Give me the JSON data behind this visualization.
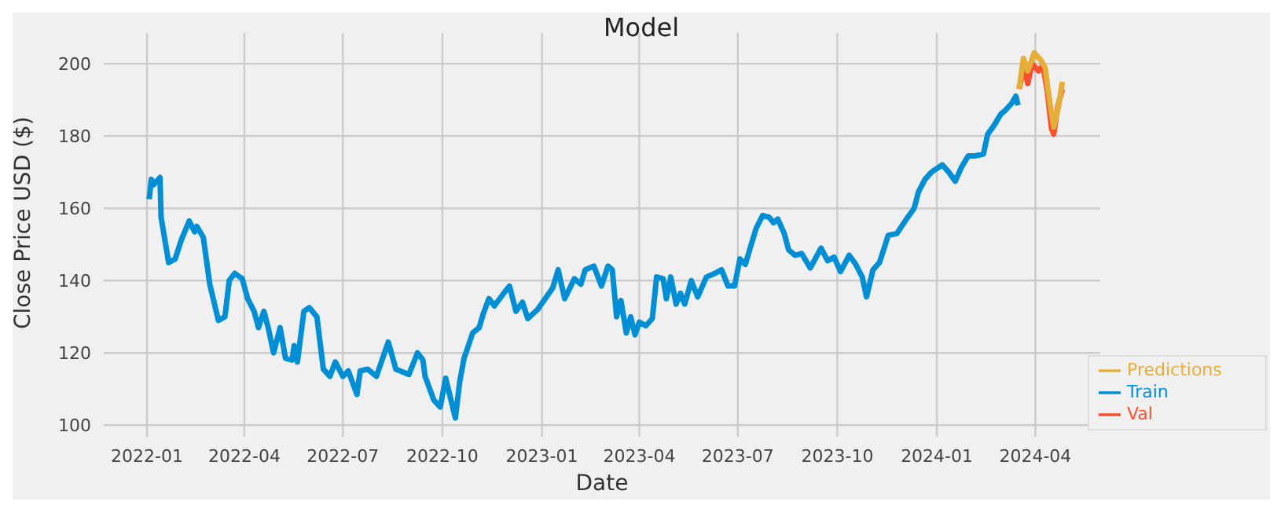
{
  "chart_data": {
    "type": "line",
    "title": "Model",
    "xlabel": "Date",
    "ylabel": "Close Price USD ($)",
    "xlim": [
      "2021-11-22",
      "2024-05-31"
    ],
    "xticks": [
      "2022-01",
      "2022-04",
      "2022-07",
      "2022-10",
      "2023-01",
      "2023-04",
      "2023-07",
      "2023-10",
      "2024-01",
      "2024-04"
    ],
    "ylim": [
      96.8,
      208.5
    ],
    "yticks": [
      100,
      120,
      140,
      160,
      180,
      200
    ],
    "grid": true,
    "legend": "bottom right",
    "marker": "none",
    "line_style": "solid",
    "series": [
      {
        "name": "Train",
        "color": "#008fd5",
        "x": [
          "2022-01-03",
          "2022-01-05",
          "2022-01-07",
          "2022-01-13",
          "2022-01-14",
          "2022-01-21",
          "2022-01-27",
          "2022-02-02",
          "2022-02-09",
          "2022-02-14",
          "2022-02-16",
          "2022-02-22",
          "2022-02-28",
          "2022-03-08",
          "2022-03-14",
          "2022-03-18",
          "2022-03-23",
          "2022-03-30",
          "2022-04-04",
          "2022-04-10",
          "2022-04-14",
          "2022-04-19",
          "2022-04-23",
          "2022-04-28",
          "2022-05-04",
          "2022-05-09",
          "2022-05-15",
          "2022-05-17",
          "2022-05-20",
          "2022-05-26",
          "2022-05-31",
          "2022-06-07",
          "2022-06-13",
          "2022-06-19",
          "2022-06-24",
          "2022-07-01",
          "2022-07-06",
          "2022-07-14",
          "2022-07-17",
          "2022-07-24",
          "2022-08-01",
          "2022-08-12",
          "2022-08-19",
          "2022-08-31",
          "2022-09-08",
          "2022-09-13",
          "2022-09-15",
          "2022-09-23",
          "2022-09-29",
          "2022-10-04",
          "2022-10-13",
          "2022-10-17",
          "2022-10-21",
          "2022-10-25",
          "2022-10-29",
          "2022-11-04",
          "2022-11-08",
          "2022-11-13",
          "2022-11-18",
          "2022-11-28",
          "2022-12-02",
          "2022-12-08",
          "2022-12-14",
          "2022-12-19",
          "2022-12-28",
          "2023-01-04",
          "2023-01-11",
          "2023-01-16",
          "2023-01-22",
          "2023-01-31",
          "2023-02-06",
          "2023-02-10",
          "2023-02-18",
          "2023-02-25",
          "2023-03-03",
          "2023-03-07",
          "2023-03-11",
          "2023-03-15",
          "2023-03-20",
          "2023-03-24",
          "2023-03-28",
          "2023-04-01",
          "2023-04-07",
          "2023-04-13",
          "2023-04-17",
          "2023-04-23",
          "2023-04-26",
          "2023-04-30",
          "2023-05-05",
          "2023-05-09",
          "2023-05-13",
          "2023-05-19",
          "2023-05-25",
          "2023-06-02",
          "2023-06-10",
          "2023-06-16",
          "2023-06-22",
          "2023-06-28",
          "2023-07-03",
          "2023-07-08",
          "2023-07-12",
          "2023-07-18",
          "2023-07-24",
          "2023-07-30",
          "2023-08-03",
          "2023-08-07",
          "2023-08-13",
          "2023-08-17",
          "2023-08-23",
          "2023-08-29",
          "2023-09-06",
          "2023-09-16",
          "2023-09-22",
          "2023-09-28",
          "2023-10-04",
          "2023-10-12",
          "2023-10-18",
          "2023-10-24",
          "2023-10-28",
          "2023-11-03",
          "2023-11-09",
          "2023-11-17",
          "2023-11-25",
          "2023-12-05",
          "2023-12-11",
          "2023-12-15",
          "2023-12-21",
          "2023-12-27",
          "2024-01-06",
          "2024-01-12",
          "2024-01-18",
          "2024-01-24",
          "2024-01-30",
          "2024-02-05",
          "2024-02-13",
          "2024-02-17",
          "2024-02-23",
          "2024-02-29",
          "2024-03-04",
          "2024-03-10",
          "2024-03-14",
          "2024-03-16"
        ],
        "values": [
          162.5,
          168,
          166.5,
          168.5,
          157.5,
          145,
          146,
          151.5,
          156.5,
          153.5,
          155,
          152,
          139,
          129,
          130,
          140,
          142,
          140.5,
          135,
          131.5,
          127,
          131.5,
          127,
          120,
          127,
          118.5,
          118,
          122,
          117.5,
          131.5,
          132.5,
          130,
          115.5,
          113.5,
          117.5,
          113.5,
          115,
          108.5,
          115,
          115.5,
          113.5,
          123,
          115.5,
          114,
          120,
          118,
          113.5,
          107,
          105,
          113,
          102,
          112,
          118.5,
          122,
          125.5,
          127,
          131,
          135,
          133,
          137,
          138.5,
          131.5,
          134,
          129.5,
          132,
          135,
          138,
          143,
          135,
          140.5,
          139,
          143,
          144,
          138.5,
          144,
          143,
          130,
          134.5,
          125.5,
          130,
          125,
          128.5,
          127.5,
          129.5,
          141,
          140.5,
          135,
          141,
          133.5,
          136.5,
          133.5,
          140,
          135.5,
          141,
          142,
          143,
          138.5,
          138.5,
          146,
          144.5,
          148.5,
          154.5,
          158,
          157.5,
          156,
          157,
          153,
          148.5,
          147,
          147.5,
          143.5,
          149,
          145.5,
          146.5,
          142.5,
          147,
          144.5,
          141,
          135.5,
          143,
          145,
          152.5,
          153,
          157.5,
          160,
          164.5,
          168,
          170,
          172,
          170,
          167.5,
          171.5,
          174.5,
          174.5,
          175,
          180.5,
          183,
          186,
          187,
          189,
          191,
          188.5
        ]
      },
      {
        "name": "Val",
        "color": "#fc4f30",
        "x": [
          "2024-03-17",
          "2024-03-22",
          "2024-03-25",
          "2024-03-29",
          "2024-04-04",
          "2024-04-08",
          "2024-04-12",
          "2024-04-16",
          "2024-04-18",
          "2024-04-22",
          "2024-04-26"
        ],
        "values": [
          193,
          199.5,
          194.5,
          200,
          198,
          199.5,
          192.5,
          182,
          180.5,
          188.5,
          193
        ]
      },
      {
        "name": "Predictions",
        "color": "#e5ae38",
        "x": [
          "2024-03-17",
          "2024-03-21",
          "2024-03-25",
          "2024-03-31",
          "2024-04-06",
          "2024-04-10",
          "2024-04-14",
          "2024-04-18",
          "2024-04-22",
          "2024-04-26"
        ],
        "values": [
          193,
          201.5,
          198,
          203,
          201,
          199,
          190,
          182.5,
          187.5,
          195
        ]
      }
    ]
  }
}
